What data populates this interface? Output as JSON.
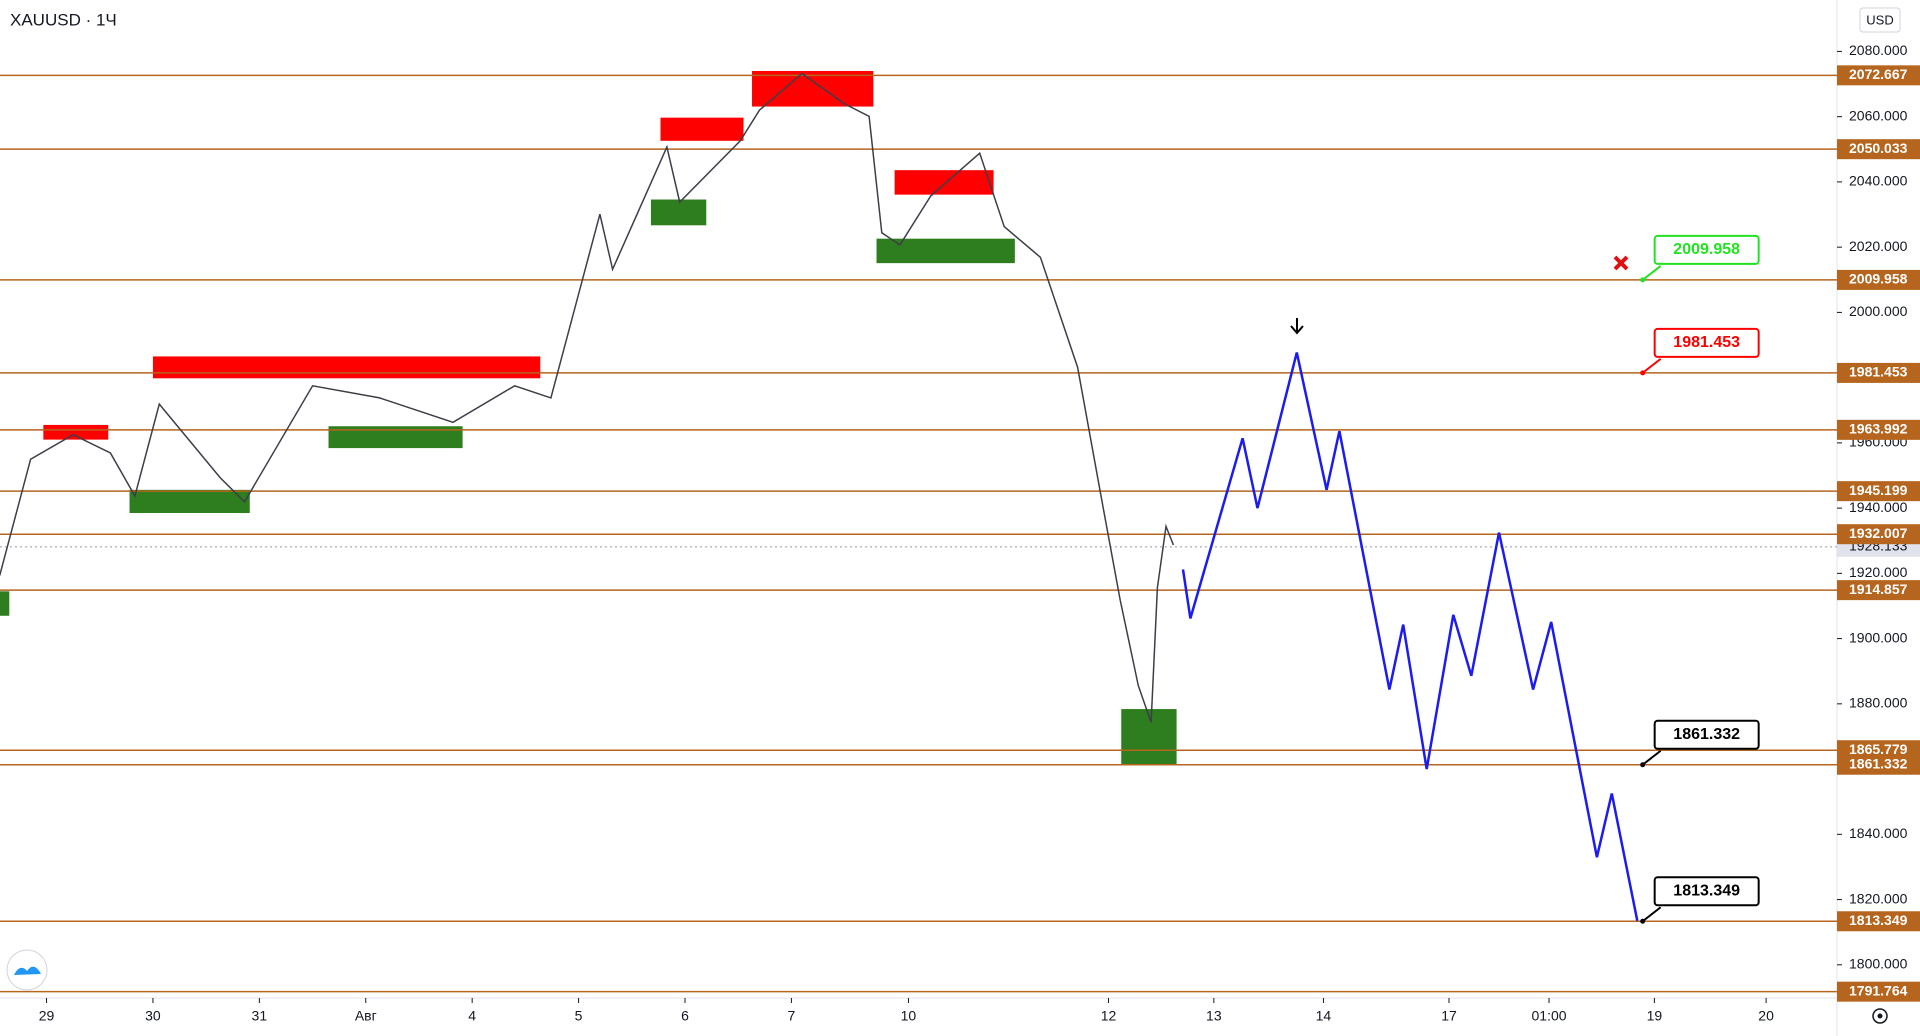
{
  "chart_data": {
    "type": "line",
    "title": "XAUUSD · 1Ч",
    "currency": "USD",
    "xlim": [
      -0.44,
      16.82
    ],
    "ylim": [
      1789.8,
      2095.8
    ],
    "xticks": [
      {
        "value": 0,
        "label": "29"
      },
      {
        "value": 1,
        "label": "30"
      },
      {
        "value": 2,
        "label": "31"
      },
      {
        "value": 3,
        "label": "Авг"
      },
      {
        "value": 4,
        "label": "4"
      },
      {
        "value": 5,
        "label": "5"
      },
      {
        "value": 6,
        "label": "6"
      },
      {
        "value": 7,
        "label": "7"
      },
      {
        "value": 8.1,
        "label": "10"
      },
      {
        "value": 9.98,
        "label": "12"
      },
      {
        "value": 10.97,
        "label": "13"
      },
      {
        "value": 12,
        "label": "14"
      },
      {
        "value": 13.18,
        "label": "17"
      },
      {
        "value": 14.12,
        "label": "01:00"
      },
      {
        "value": 15.11,
        "label": "19"
      },
      {
        "value": 16.16,
        "label": "20"
      }
    ],
    "yticks": [
      {
        "value": 1800,
        "label": "1800.000"
      },
      {
        "value": 1820,
        "label": "1820.000"
      },
      {
        "value": 1840,
        "label": "1840.000"
      },
      {
        "value": 1860,
        "label": "1860.000"
      },
      {
        "value": 1880,
        "label": "1880.000"
      },
      {
        "value": 1900,
        "label": "1900.000"
      },
      {
        "value": 1920,
        "label": "1920.000"
      },
      {
        "value": 1940,
        "label": "1940.000"
      },
      {
        "value": 1960,
        "label": "1960.000"
      },
      {
        "value": 2000,
        "label": "2000.000"
      },
      {
        "value": 2020,
        "label": "2020.000"
      },
      {
        "value": 2040,
        "label": "2040.000"
      },
      {
        "value": 2060,
        "label": "2060.000"
      },
      {
        "value": 2080,
        "label": "2080.000"
      }
    ],
    "level_color": "#b5651d",
    "levels": [
      2072.667,
      2050.033,
      2009.958,
      1981.453,
      1963.992,
      1945.199,
      1932.007,
      1914.857,
      1865.779,
      1861.332,
      1813.349,
      1791.764
    ],
    "last_price": {
      "value": 1928.133,
      "color": "#9598a1"
    },
    "price": {
      "color": "#3c3f48",
      "x": [
        -0.44,
        -0.15,
        0.25,
        0.6,
        0.83,
        1.06,
        1.63,
        1.86,
        2.5,
        3.13,
        3.82,
        4.4,
        4.74,
        5.2,
        5.32,
        5.83,
        5.95,
        6.52,
        6.7,
        7.1,
        7.5,
        7.73,
        7.85,
        8.02,
        8.31,
        8.77,
        9.0,
        9.34,
        9.69,
        9.92,
        10.09,
        10.26,
        10.38,
        10.44,
        10.52,
        10.59
      ],
      "values": [
        1919.3,
        1955,
        1962.5,
        1956.9,
        1943.7,
        1971.9,
        1949.4,
        1941.9,
        1977.5,
        1973.8,
        1966.3,
        1977.5,
        1973.8,
        2030.1,
        2013.2,
        2050.7,
        2033.8,
        2052.6,
        2062,
        2073.2,
        2063.9,
        2060.1,
        2024.4,
        2020.7,
        2035.7,
        2048.8,
        2026.3,
        2016.9,
        1983.2,
        1941.9,
        1911.8,
        1885.6,
        1874.3,
        1915.6,
        1934.4,
        1928.7
      ]
    },
    "projection": {
      "color": "#1c1cf0",
      "x": [
        10.68,
        10.75,
        11.24,
        11.38,
        11.75,
        12.03,
        12.15,
        12.62,
        12.75,
        12.97,
        13.22,
        13.39,
        13.65,
        13.97,
        14.14,
        14.57,
        14.71,
        14.95
      ],
      "values": [
        1921.2,
        1906.2,
        1961.4,
        1940,
        1987.7,
        1945.6,
        1963.6,
        1884.4,
        1904.3,
        1860,
        1907.3,
        1888.6,
        1932.5,
        1884.4,
        1905.1,
        1833,
        1852.5,
        1813.5
      ]
    },
    "zones": [
      {
        "color": "#ff0000",
        "x": [
          -0.03,
          0.58
        ],
        "y": [
          1961,
          1965.5
        ]
      },
      {
        "color": "#ff0000",
        "x": [
          1.0,
          4.64
        ],
        "y": [
          1979.8,
          1986.5
        ]
      },
      {
        "color": "#ff0000",
        "x": [
          5.77,
          6.55
        ],
        "y": [
          2052.6,
          2059.7
        ]
      },
      {
        "color": "#ff0000",
        "x": [
          6.63,
          7.77
        ],
        "y": [
          2063.1,
          2074
        ]
      },
      {
        "color": "#ff0000",
        "x": [
          7.97,
          8.9
        ],
        "y": [
          2036.1,
          2043.6
        ]
      },
      {
        "color": "#2e7d1f",
        "x": [
          -0.44,
          -0.35
        ],
        "y": [
          1907,
          1914.5
        ]
      },
      {
        "color": "#2e7d1f",
        "x": [
          0.78,
          1.91
        ],
        "y": [
          1938.5,
          1945.6
        ]
      },
      {
        "color": "#2e7d1f",
        "x": [
          2.65,
          3.91
        ],
        "y": [
          1958.4,
          1965.1
        ]
      },
      {
        "color": "#2e7d1f",
        "x": [
          5.68,
          6.2
        ],
        "y": [
          2026.7,
          2034.6
        ]
      },
      {
        "color": "#2e7d1f",
        "x": [
          7.8,
          9.1
        ],
        "y": [
          2015.1,
          2022.6
        ]
      },
      {
        "color": "#2e7d1f",
        "x": [
          10.1,
          10.62
        ],
        "y": [
          1861.5,
          1878.4
        ]
      }
    ],
    "callouts": [
      {
        "value": 2009.958,
        "color": "#22e222"
      },
      {
        "value": 1981.453,
        "color": "#ff0000"
      },
      {
        "value": 1861.332,
        "color": "#000000"
      },
      {
        "value": 1813.349,
        "color": "#000000"
      }
    ]
  }
}
